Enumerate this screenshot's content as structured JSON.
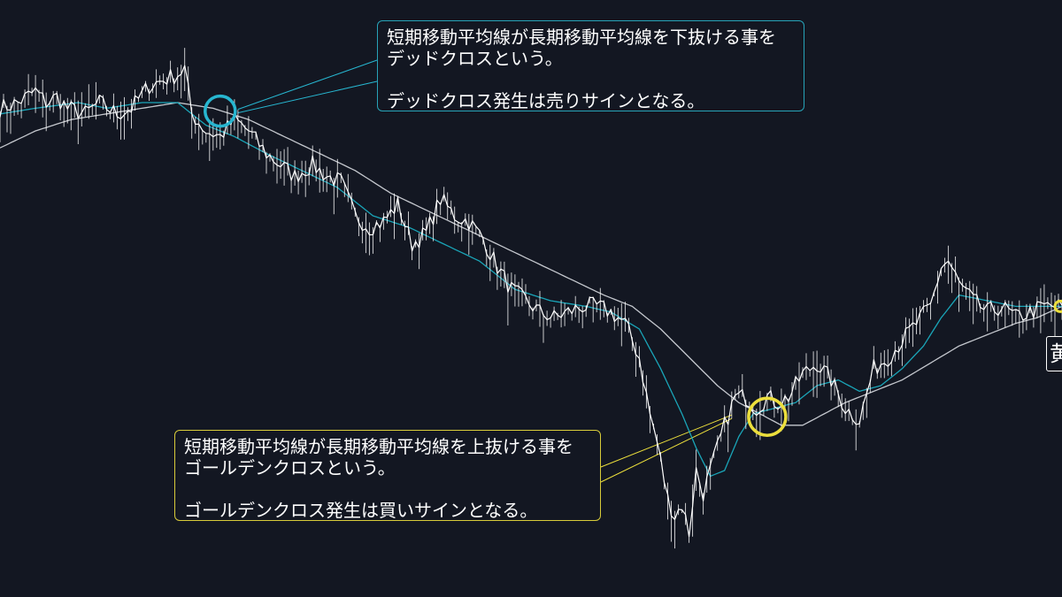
{
  "chart_data": {
    "type": "line",
    "x_count": 300,
    "ylim": [
      0,
      100
    ],
    "grid": false,
    "colors": {
      "background": "#131722",
      "price": "#ffffff",
      "short_ma": "#1aa5b8",
      "long_ma": "#cfd2d8",
      "dead_cross": "#27b6d0",
      "golden_cross": "#ecdf3c"
    },
    "price_anchors": [
      [
        0,
        84
      ],
      [
        5,
        85
      ],
      [
        10,
        87
      ],
      [
        13,
        85
      ],
      [
        16,
        86
      ],
      [
        19,
        84
      ],
      [
        24,
        83
      ],
      [
        28,
        85
      ],
      [
        33,
        83
      ],
      [
        37,
        84
      ],
      [
        42,
        88
      ],
      [
        46,
        89
      ],
      [
        50,
        90
      ],
      [
        52,
        91
      ],
      [
        54,
        83
      ],
      [
        58,
        80
      ],
      [
        62,
        79
      ],
      [
        66,
        82
      ],
      [
        70,
        80
      ],
      [
        75,
        76
      ],
      [
        79,
        74
      ],
      [
        83,
        72
      ],
      [
        88,
        74
      ],
      [
        92,
        72
      ],
      [
        96,
        71
      ],
      [
        100,
        65
      ],
      [
        104,
        63
      ],
      [
        108,
        64
      ],
      [
        112,
        67
      ],
      [
        116,
        60
      ],
      [
        120,
        62
      ],
      [
        124,
        68
      ],
      [
        128,
        65
      ],
      [
        132,
        64
      ],
      [
        136,
        61
      ],
      [
        140,
        56
      ],
      [
        144,
        52
      ],
      [
        148,
        50
      ],
      [
        152,
        48
      ],
      [
        156,
        47
      ],
      [
        160,
        48
      ],
      [
        164,
        49
      ],
      [
        168,
        49
      ],
      [
        172,
        48
      ],
      [
        176,
        46
      ],
      [
        180,
        40
      ],
      [
        183,
        30
      ],
      [
        185,
        25
      ],
      [
        188,
        15
      ],
      [
        190,
        12
      ],
      [
        192,
        14
      ],
      [
        194,
        9
      ],
      [
        196,
        20
      ],
      [
        198,
        16
      ],
      [
        201,
        22
      ],
      [
        204,
        28
      ],
      [
        207,
        33
      ],
      [
        210,
        33
      ],
      [
        213,
        31
      ],
      [
        216,
        33
      ],
      [
        219,
        32
      ],
      [
        222,
        33
      ],
      [
        226,
        37
      ],
      [
        230,
        39
      ],
      [
        234,
        36
      ],
      [
        238,
        31
      ],
      [
        242,
        29
      ],
      [
        246,
        38
      ],
      [
        250,
        40
      ],
      [
        254,
        43
      ],
      [
        258,
        46
      ],
      [
        262,
        49
      ],
      [
        265,
        56
      ],
      [
        267,
        57
      ],
      [
        270,
        53
      ],
      [
        274,
        50
      ],
      [
        278,
        48
      ],
      [
        282,
        49
      ],
      [
        286,
        47
      ],
      [
        290,
        48
      ],
      [
        294,
        49
      ],
      [
        299,
        49
      ]
    ],
    "short_ma_anchors": [
      [
        0,
        83
      ],
      [
        10,
        84
      ],
      [
        22,
        85
      ],
      [
        30,
        84
      ],
      [
        40,
        85
      ],
      [
        50,
        85
      ],
      [
        58,
        81
      ],
      [
        66,
        79
      ],
      [
        75,
        76
      ],
      [
        85,
        73
      ],
      [
        95,
        70
      ],
      [
        105,
        65
      ],
      [
        115,
        63
      ],
      [
        125,
        60
      ],
      [
        135,
        57
      ],
      [
        145,
        52
      ],
      [
        155,
        50
      ],
      [
        165,
        49
      ],
      [
        172,
        48
      ],
      [
        180,
        45
      ],
      [
        186,
        38
      ],
      [
        192,
        30
      ],
      [
        196,
        24
      ],
      [
        200,
        19
      ],
      [
        204,
        20
      ],
      [
        208,
        26
      ],
      [
        212,
        30
      ],
      [
        218,
        31
      ],
      [
        224,
        32
      ],
      [
        230,
        35
      ],
      [
        236,
        36
      ],
      [
        242,
        34
      ],
      [
        248,
        35
      ],
      [
        254,
        38
      ],
      [
        260,
        42
      ],
      [
        265,
        47
      ],
      [
        270,
        51
      ],
      [
        278,
        50
      ],
      [
        286,
        49
      ],
      [
        292,
        49
      ],
      [
        299,
        49
      ]
    ],
    "long_ma_anchors": [
      [
        0,
        77
      ],
      [
        10,
        80
      ],
      [
        20,
        82
      ],
      [
        30,
        83
      ],
      [
        40,
        84
      ],
      [
        50,
        85
      ],
      [
        60,
        84
      ],
      [
        70,
        82
      ],
      [
        80,
        79
      ],
      [
        90,
        76
      ],
      [
        100,
        73
      ],
      [
        110,
        69
      ],
      [
        120,
        66
      ],
      [
        130,
        63
      ],
      [
        140,
        60
      ],
      [
        150,
        57
      ],
      [
        160,
        54
      ],
      [
        170,
        51
      ],
      [
        178,
        49
      ],
      [
        186,
        45
      ],
      [
        194,
        40
      ],
      [
        202,
        35
      ],
      [
        208,
        32
      ],
      [
        214,
        30
      ],
      [
        220,
        28
      ],
      [
        226,
        28
      ],
      [
        232,
        30
      ],
      [
        238,
        32
      ],
      [
        246,
        34
      ],
      [
        254,
        36
      ],
      [
        262,
        39
      ],
      [
        270,
        42
      ],
      [
        278,
        44
      ],
      [
        286,
        46
      ],
      [
        292,
        47
      ],
      [
        299,
        49
      ]
    ],
    "dead_cross": {
      "x": 62,
      "y": 83.5
    },
    "golden_cross": {
      "x": 216,
      "y": 29.5
    }
  },
  "callouts": {
    "dead_cross": {
      "line1": "短期移動平均線が長期移動平均線を下抜ける事を",
      "line2": "デッドクロスという。",
      "line3": "デッドクロス発生は売りサインとなる。"
    },
    "golden_cross": {
      "line1": "短期移動平均線が長期移動平均線を上抜ける事を",
      "line2": "ゴールデンクロスという。",
      "line3": "ゴールデンクロス発生は買いサインとなる。"
    }
  },
  "edge_label": "黄"
}
